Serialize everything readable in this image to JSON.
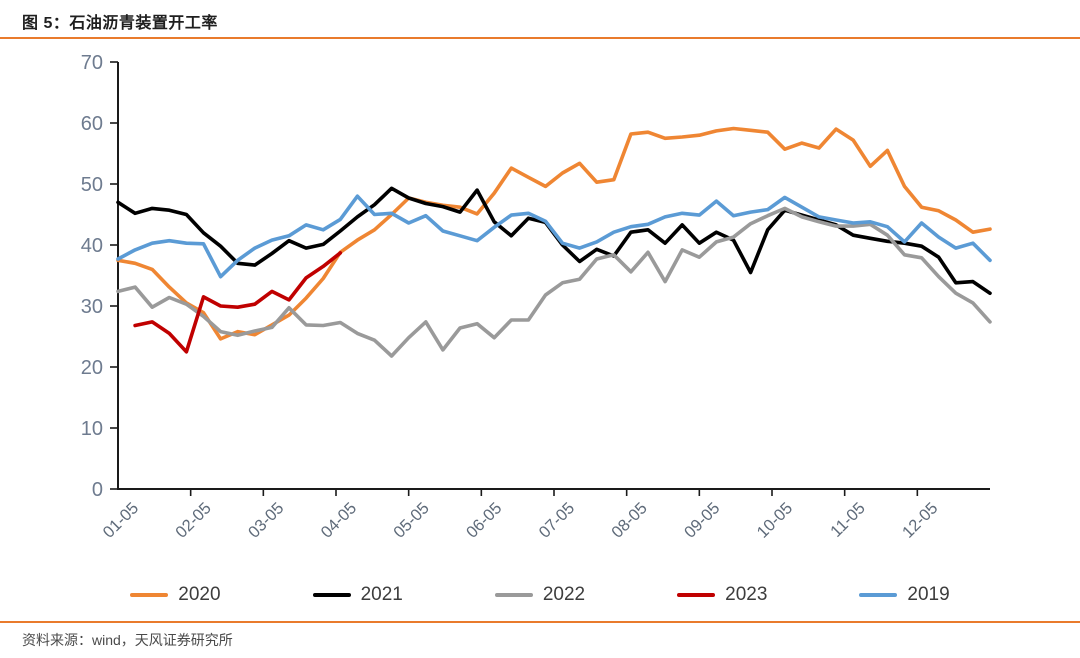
{
  "page": {
    "background": "#FFFFFF",
    "accent_rule_color": "#E97B2C"
  },
  "header": {
    "title": "图 5：石油沥青装置开工率"
  },
  "footer": {
    "source": "资料来源：wind，天风证券研究所"
  },
  "chart_data": {
    "type": "line",
    "title": "石油沥青装置开工率",
    "xlabel": "",
    "ylabel": "",
    "ylim": [
      0,
      70
    ],
    "y_ticks": [
      "0",
      "10",
      "20",
      "30",
      "40",
      "50",
      "60",
      "70"
    ],
    "categories": [
      "01-05",
      "02-05",
      "03-05",
      "04-05",
      "05-05",
      "06-05",
      "07-05",
      "08-05",
      "09-05",
      "10-05",
      "11-05",
      "12-05"
    ],
    "weeks": 52,
    "grid": false,
    "legend_position": "bottom",
    "series": [
      {
        "name": "2020",
        "color": "#EF8633",
        "start": 0,
        "values": [
          37.5,
          37.0,
          36.0,
          33.1,
          30.5,
          28.9,
          24.6,
          25.8,
          25.3,
          26.9,
          28.5,
          31.3,
          34.5,
          38.8,
          40.8,
          42.5,
          45.0,
          47.7,
          47.0,
          46.5,
          46.2,
          45.1,
          48.5,
          52.6,
          51.1,
          49.6,
          51.8,
          53.4,
          50.3,
          50.7,
          58.2,
          58.5,
          57.5,
          57.7,
          58.0,
          58.7,
          59.1,
          58.8,
          58.5,
          55.7,
          56.7,
          55.9,
          59.0,
          57.2,
          52.9,
          55.5,
          49.6,
          46.2,
          45.6,
          44.1,
          42.1,
          42.6
        ]
      },
      {
        "name": "2021",
        "color": "#000000",
        "start": 0,
        "values": [
          47.0,
          45.2,
          46.0,
          45.7,
          45.0,
          42.0,
          39.8,
          37.0,
          36.7,
          38.6,
          40.7,
          39.5,
          40.1,
          42.3,
          44.6,
          46.6,
          49.3,
          47.7,
          46.8,
          46.3,
          45.4,
          49.0,
          43.8,
          41.5,
          44.4,
          43.7,
          40.0,
          37.3,
          39.3,
          38.2,
          42.1,
          42.5,
          40.3,
          43.3,
          40.3,
          42.1,
          40.8,
          35.5,
          42.5,
          45.7,
          44.9,
          44.1,
          43.3,
          41.6,
          41.1,
          40.6,
          40.3,
          39.8,
          38.0,
          33.8,
          34.0,
          32.1
        ]
      },
      {
        "name": "2022",
        "color": "#9A9A9A",
        "start": 0,
        "values": [
          32.4,
          33.1,
          29.8,
          31.4,
          30.3,
          28.3,
          25.8,
          25.2,
          25.9,
          26.5,
          29.7,
          26.9,
          26.8,
          27.3,
          25.5,
          24.4,
          21.8,
          24.8,
          27.4,
          22.8,
          26.4,
          27.1,
          24.8,
          27.7,
          27.7,
          31.8,
          33.8,
          34.4,
          37.7,
          38.4,
          35.6,
          38.8,
          34.0,
          39.2,
          38.0,
          40.5,
          41.3,
          43.5,
          44.8,
          46.0,
          44.6,
          43.8,
          43.1,
          43.1,
          43.4,
          41.6,
          38.4,
          37.9,
          34.8,
          32.1,
          30.5,
          27.4
        ]
      },
      {
        "name": "2023",
        "color": "#C00000",
        "start": 1,
        "values": [
          26.8,
          27.4,
          25.5,
          22.5,
          31.5,
          30.0,
          29.8,
          30.3,
          32.4,
          31.0,
          34.6,
          36.5,
          38.7
        ]
      },
      {
        "name": "2019",
        "color": "#5B9BD5",
        "start": 0,
        "values": [
          37.7,
          39.2,
          40.3,
          40.7,
          40.3,
          40.2,
          34.8,
          37.5,
          39.5,
          40.8,
          41.5,
          43.3,
          42.5,
          44.2,
          48.0,
          45.0,
          45.2,
          43.6,
          44.8,
          42.3,
          41.5,
          40.7,
          42.9,
          44.9,
          45.2,
          43.9,
          40.3,
          39.5,
          40.5,
          42.1,
          43.0,
          43.4,
          44.6,
          45.2,
          44.9,
          47.2,
          44.8,
          45.4,
          45.8,
          47.8,
          46.2,
          44.6,
          44.1,
          43.6,
          43.8,
          43.0,
          40.5,
          43.6,
          41.3,
          39.5,
          40.3,
          37.5
        ]
      }
    ],
    "legend_order": [
      "2020",
      "2021",
      "2022",
      "2023",
      "2019"
    ]
  }
}
